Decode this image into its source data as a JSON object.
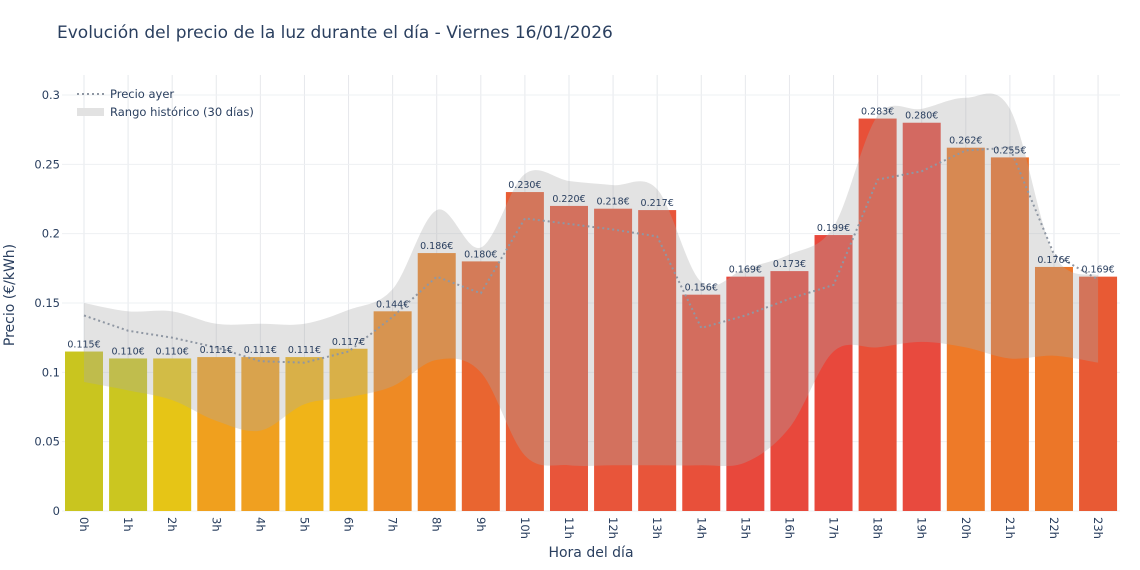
{
  "chart_data": {
    "type": "bar",
    "title": "Evolución del precio de la luz durante el día - Viernes 16/01/2026",
    "xlabel": "Hora del día",
    "ylabel": "Precio (€/kWh)",
    "ylim": [
      0,
      0.31
    ],
    "yticks": [
      0,
      0.05,
      0.1,
      0.15,
      0.2,
      0.25,
      0.3
    ],
    "ytick_labels": [
      "0",
      "0.05",
      "0.1",
      "0.15",
      "0.2",
      "0.25",
      "0.3"
    ],
    "grid": true,
    "legend_position": "top-left",
    "categories": [
      "0h",
      "1h",
      "2h",
      "3h",
      "4h",
      "5h",
      "6h",
      "7h",
      "8h",
      "9h",
      "10h",
      "11h",
      "12h",
      "13h",
      "14h",
      "15h",
      "16h",
      "17h",
      "18h",
      "19h",
      "20h",
      "21h",
      "22h",
      "23h"
    ],
    "values": [
      0.115,
      0.11,
      0.11,
      0.111,
      0.111,
      0.111,
      0.117,
      0.144,
      0.186,
      0.18,
      0.23,
      0.22,
      0.218,
      0.217,
      0.156,
      0.169,
      0.173,
      0.199,
      0.283,
      0.28,
      0.262,
      0.255,
      0.176,
      0.169
    ],
    "data_labels": [
      "0.115€",
      "0.110€",
      "0.110€",
      "0.111€",
      "0.111€",
      "0.111€",
      "0.117€",
      "0.144€",
      "0.186€",
      "0.180€",
      "0.230€",
      "0.220€",
      "0.218€",
      "0.217€",
      "0.156€",
      "0.169€",
      "0.173€",
      "0.199€",
      "0.283€",
      "0.280€",
      "0.262€",
      "0.255€",
      "0.176€",
      "0.169€"
    ],
    "bar_colors": [
      "#c9c51f",
      "#cbc620",
      "#e6c516",
      "#f0a01e",
      "#f0a020",
      "#f0b418",
      "#f0b418",
      "#ee8a24",
      "#ee8224",
      "#e96530",
      "#e85d35",
      "#e8553a",
      "#e8553a",
      "#e8553a",
      "#e8503a",
      "#e8483c",
      "#e8483c",
      "#e8483c",
      "#e85038",
      "#e84a3e",
      "#ee7a28",
      "#ec7028",
      "#ec7628",
      "#e85a34"
    ],
    "series": [
      {
        "name": "Precio ayer",
        "type": "line",
        "style": "dotted",
        "color": "#8f97a3",
        "values": [
          0.141,
          0.13,
          0.125,
          0.118,
          0.108,
          0.107,
          0.115,
          0.14,
          0.169,
          0.157,
          0.211,
          0.207,
          0.203,
          0.198,
          0.132,
          0.141,
          0.153,
          0.163,
          0.239,
          0.245,
          0.26,
          0.262,
          0.185,
          0.167
        ]
      },
      {
        "name": "Rango histórico (30 días)",
        "type": "band",
        "color": "#c8c8c8",
        "upper": [
          0.15,
          0.144,
          0.144,
          0.135,
          0.135,
          0.135,
          0.145,
          0.16,
          0.217,
          0.19,
          0.243,
          0.238,
          0.235,
          0.232,
          0.165,
          0.175,
          0.185,
          0.205,
          0.285,
          0.29,
          0.298,
          0.29,
          0.185,
          0.17
        ],
        "lower": [
          0.093,
          0.087,
          0.08,
          0.065,
          0.058,
          0.077,
          0.082,
          0.09,
          0.109,
          0.1,
          0.04,
          0.033,
          0.033,
          0.033,
          0.033,
          0.035,
          0.06,
          0.115,
          0.118,
          0.122,
          0.118,
          0.11,
          0.112,
          0.107
        ]
      }
    ]
  }
}
